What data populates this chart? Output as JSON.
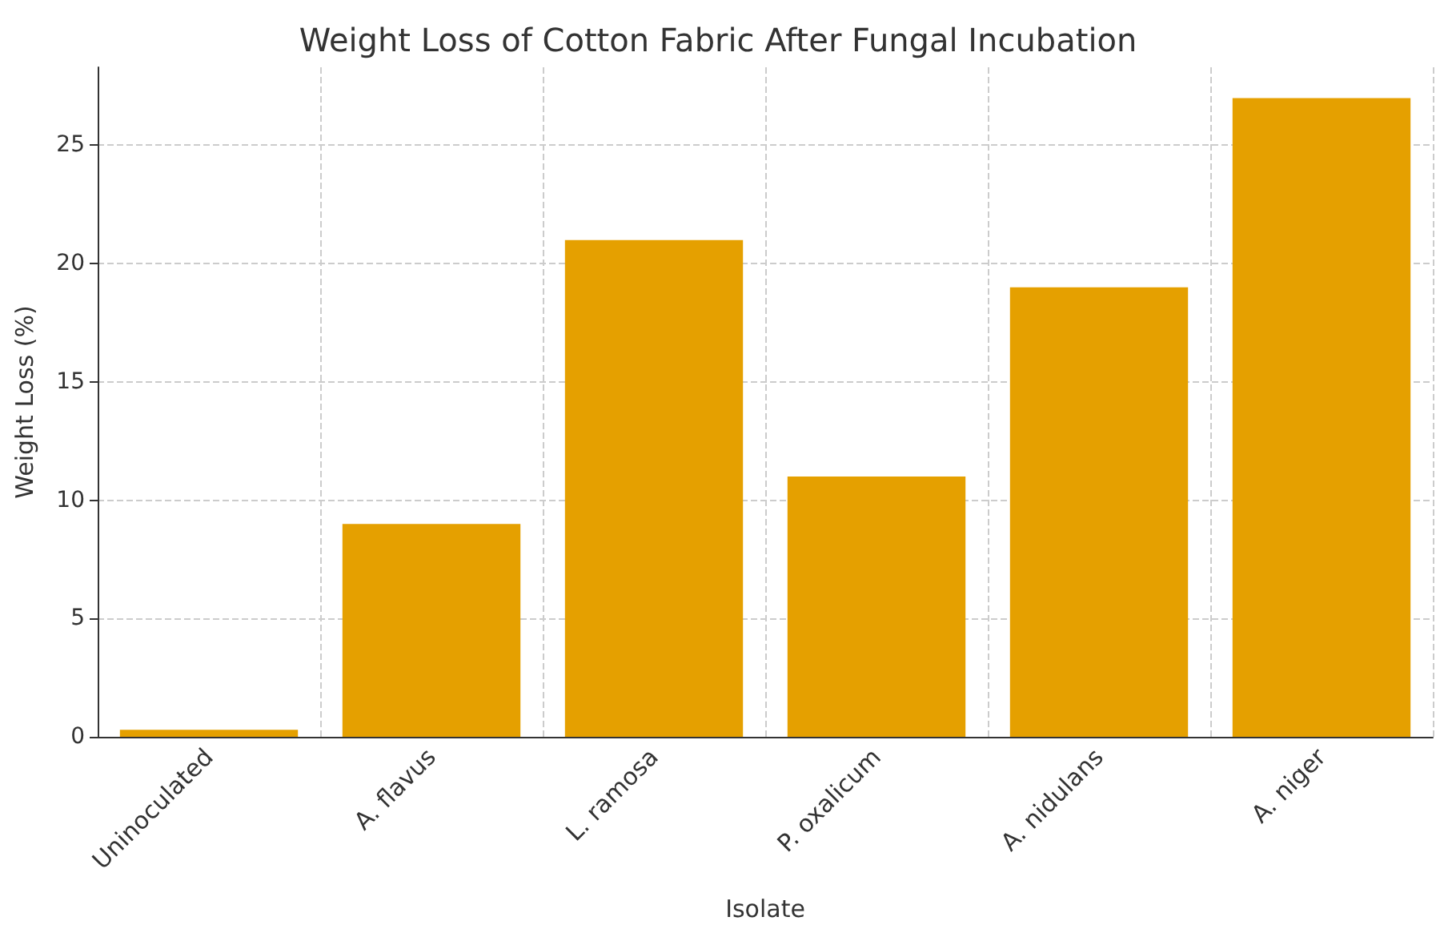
{
  "chart_data": {
    "type": "bar",
    "title": "Weight Loss of Cotton Fabric After Fungal Incubation",
    "xlabel": "Isolate",
    "ylabel": "Weight Loss (%)",
    "categories": [
      "Uninoculated",
      "A. flavus",
      "L. ramosa",
      "P. oxalicum",
      "A. nidulans",
      "A. niger"
    ],
    "values": [
      0.3,
      9,
      21,
      11,
      19,
      27
    ],
    "color": "#e5a000",
    "ylim": [
      0,
      28.3
    ],
    "yticks": [
      0,
      5,
      10,
      15,
      20,
      25
    ],
    "grid": true
  }
}
